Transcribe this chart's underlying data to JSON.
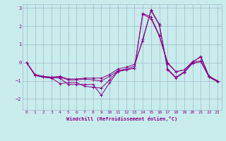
{
  "title": "",
  "xlabel": "Windchill (Refroidissement éolien,°C)",
  "ylabel": "",
  "bg_color": "#c8ecec",
  "grid_color": "#a0b8c8",
  "line_color": "#880088",
  "xlim": [
    -0.5,
    23.5
  ],
  "ylim": [
    -2.6,
    3.2
  ],
  "yticks": [
    -2,
    -1,
    0,
    1,
    2,
    3
  ],
  "xticks": [
    0,
    1,
    2,
    3,
    4,
    5,
    6,
    7,
    8,
    9,
    10,
    11,
    12,
    13,
    14,
    15,
    16,
    17,
    18,
    19,
    20,
    21,
    22,
    23
  ],
  "series": [
    [
      0.0,
      -0.7,
      -0.8,
      -0.8,
      -0.85,
      -1.2,
      -1.2,
      -1.2,
      -1.2,
      -1.8,
      -1.1,
      -0.5,
      -0.4,
      -0.3,
      2.7,
      2.5,
      1.5,
      0.0,
      -0.5,
      -0.4,
      0.0,
      0.35,
      -0.75,
      -1.0
    ],
    [
      0.0,
      -0.7,
      -0.8,
      -0.85,
      -1.15,
      -1.1,
      -1.1,
      -1.3,
      -1.35,
      -1.4,
      -0.95,
      -0.45,
      -0.4,
      -0.3,
      2.65,
      2.4,
      1.45,
      -0.05,
      -0.5,
      -0.4,
      0.05,
      0.3,
      -0.8,
      -1.0
    ],
    [
      0.0,
      -0.65,
      -0.75,
      -0.8,
      -0.75,
      -0.9,
      -0.9,
      -0.85,
      -0.85,
      -0.85,
      -0.65,
      -0.35,
      -0.25,
      -0.1,
      1.2,
      2.9,
      2.1,
      -0.4,
      -0.85,
      -0.55,
      -0.05,
      0.05,
      -0.8,
      -1.05
    ],
    [
      0.0,
      -0.7,
      -0.8,
      -0.85,
      -0.8,
      -0.95,
      -0.95,
      -0.9,
      -0.95,
      -1.0,
      -0.75,
      -0.45,
      -0.35,
      -0.2,
      1.3,
      2.85,
      2.05,
      -0.35,
      -0.8,
      -0.5,
      -0.0,
      0.1,
      -0.75,
      -1.0
    ]
  ]
}
